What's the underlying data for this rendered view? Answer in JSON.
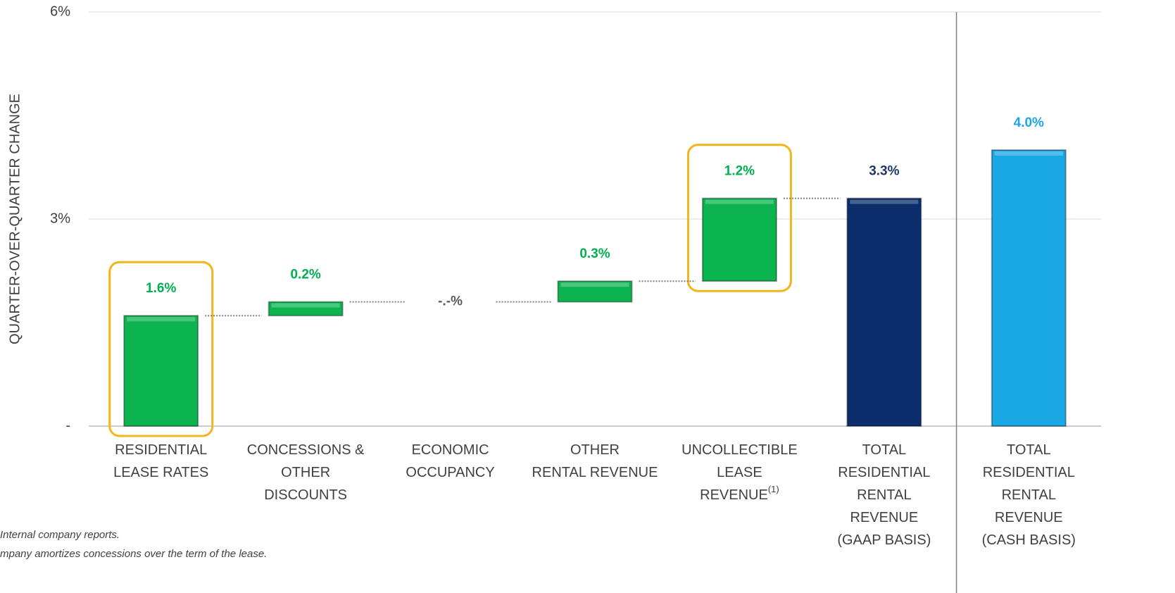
{
  "chart_data": {
    "type": "waterfall",
    "y_axis_label": "QUARTER-OVER-QUARTER CHANGE",
    "categories": [
      [
        "RESIDENTIAL",
        "LEASE RATES"
      ],
      [
        "CONCESSIONS &",
        "OTHER",
        "DISCOUNTS"
      ],
      [
        "ECONOMIC",
        "OCCUPANCY"
      ],
      [
        "OTHER",
        "RENTAL REVENUE"
      ],
      [
        "UNCOLLECTIBLE",
        "LEASE",
        "REVENUE"
      ],
      [
        "TOTAL",
        "RESIDENTIAL",
        "RENTAL",
        "REVENUE",
        "(GAAP BASIS)"
      ],
      [
        "TOTAL",
        "RESIDENTIAL",
        "RENTAL",
        "REVENUE",
        "(CASH BASIS)"
      ]
    ],
    "note_marks": {
      "4": "(1)"
    },
    "values": [
      1.6,
      0.2,
      0,
      0.3,
      1.2,
      3.3,
      4.0
    ],
    "value_labels": [
      "1.6%",
      "0.2%",
      "-.-%",
      "0.3%",
      "1.2%",
      "3.3%",
      "4.0%"
    ],
    "kinds": [
      "delta",
      "delta",
      "delta",
      "delta",
      "delta",
      "total",
      "total"
    ],
    "colors": [
      "#0cb450",
      "#0cb450",
      "#0cb450",
      "#0cb450",
      "#0cb450",
      "#0b2d6b",
      "#1aa7e6"
    ],
    "label_colors": [
      "#00b050",
      "#00b050",
      "#595959",
      "#00b050",
      "#00b050",
      "#1f3864",
      "#1aa7e6"
    ],
    "highlight": [
      0,
      4
    ],
    "separator_before": 6,
    "ylim": [
      0,
      6
    ],
    "yticks": [
      {
        "value": 0,
        "label": "-"
      },
      {
        "value": 3,
        "label": "3%"
      },
      {
        "value": 6,
        "label": "6%"
      }
    ],
    "grid": true,
    "footnotes": [
      "Internal company reports.",
      "mpany amortizes concessions over the term of the lease."
    ]
  }
}
